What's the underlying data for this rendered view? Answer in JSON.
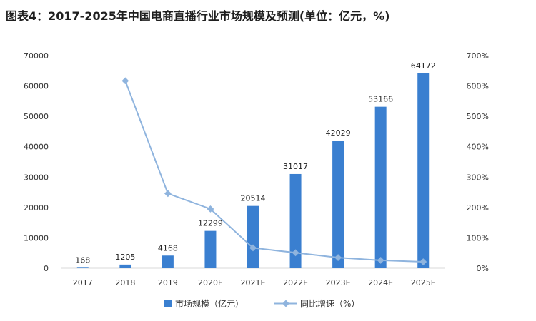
{
  "title": "图表4：2017-2025年中国电商直播行业市场规模及预测(单位：亿元，%)",
  "colors": {
    "bar": "#3A7FD0",
    "line": "#8FB4DE",
    "gridline": "#D9D9D9"
  },
  "chart_data": {
    "type": "bar",
    "categories": [
      "2017",
      "2018",
      "2019",
      "2020E",
      "2021E",
      "2022E",
      "2023E",
      "2024E",
      "2025E"
    ],
    "series": [
      {
        "name": "市场规模（亿元）",
        "type": "bar",
        "axis": "left",
        "values": [
          168,
          1205,
          4168,
          12299,
          20514,
          31017,
          42029,
          53166,
          64172
        ]
      },
      {
        "name": "同比增速（%）",
        "type": "line",
        "axis": "right",
        "values": [
          null,
          617,
          246,
          195,
          67,
          51,
          35,
          26,
          21
        ]
      }
    ],
    "data_labels": [
      "168",
      "1205",
      "4168",
      "12299",
      "20514",
      "31017",
      "42029",
      "53166",
      "64172"
    ],
    "ylim_left": [
      0,
      70000
    ],
    "yticks_left": [
      "0",
      "10000",
      "20000",
      "30000",
      "40000",
      "50000",
      "60000",
      "70000"
    ],
    "ylim_right": [
      0,
      700
    ],
    "yticks_right": [
      "0%",
      "100%",
      "200%",
      "300%",
      "400%",
      "500%",
      "600%",
      "700%"
    ],
    "grid": false,
    "legend": "bottom-center"
  }
}
